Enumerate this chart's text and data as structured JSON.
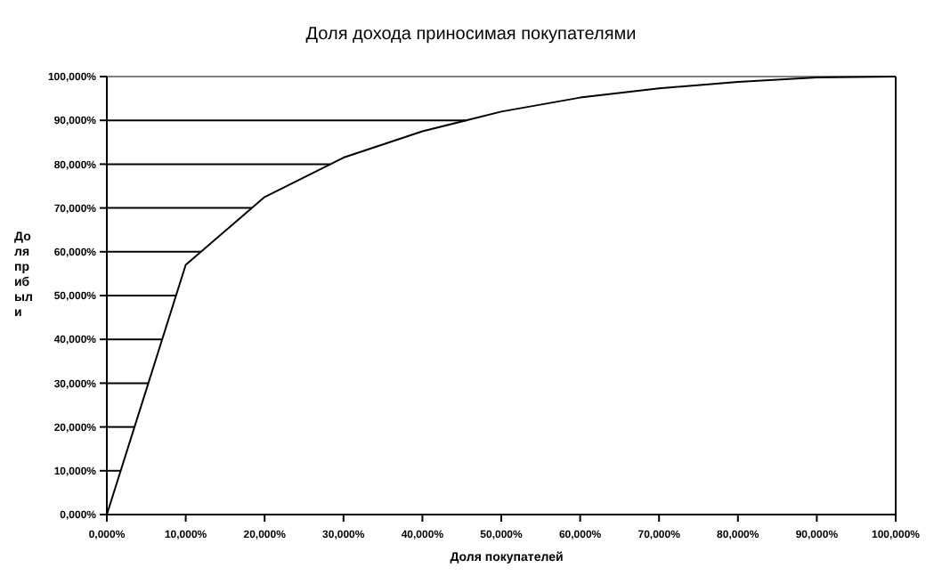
{
  "chart_data": {
    "type": "line",
    "title": "Доля дохода приносимая покупателями",
    "xlabel": "Доля покупателей",
    "ylabel": "Доля прибыли",
    "x": [
      0,
      10,
      20,
      30,
      40,
      50,
      60,
      70,
      80,
      90,
      100
    ],
    "series": [
      {
        "color": "#000000",
        "values": [
          0,
          57,
          72.5,
          81.5,
          87.5,
          92,
          95.2,
          97.3,
          98.8,
          99.8,
          100
        ]
      },
      {
        "type": "line",
        "color": "#000000",
        "x": [
          0,
          1.75
        ],
        "values": [
          10,
          10
        ]
      },
      {
        "type": "line",
        "color": "#000000",
        "x": [
          0,
          3.5
        ],
        "values": [
          20,
          20
        ]
      },
      {
        "type": "line",
        "color": "#000000",
        "x": [
          0,
          5.3
        ],
        "values": [
          30,
          30
        ]
      },
      {
        "type": "line",
        "color": "#000000",
        "x": [
          0,
          7
        ],
        "values": [
          40,
          40
        ]
      },
      {
        "type": "line",
        "color": "#000000",
        "x": [
          0,
          8.8
        ],
        "values": [
          50,
          50
        ]
      },
      {
        "type": "line",
        "color": "#000000",
        "x": [
          0,
          11.9
        ],
        "values": [
          60,
          60
        ]
      },
      {
        "type": "line",
        "color": "#000000",
        "x": [
          0,
          18.4
        ],
        "values": [
          70,
          70
        ]
      },
      {
        "type": "line",
        "color": "#000000",
        "x": [
          0,
          28.3
        ],
        "values": [
          80,
          80
        ]
      },
      {
        "type": "line",
        "color": "#000000",
        "x": [
          0,
          45.6
        ],
        "values": [
          90,
          90
        ]
      }
    ],
    "xlim": [
      0,
      100
    ],
    "ylim": [
      0,
      100
    ],
    "xticks": [
      {
        "value": 0,
        "label": "0,000%"
      },
      {
        "value": 10,
        "label": "10,000%"
      },
      {
        "value": 20,
        "label": "20,000%"
      },
      {
        "value": 30,
        "label": "30,000%"
      },
      {
        "value": 40,
        "label": "40,000%"
      },
      {
        "value": 50,
        "label": "50,000%"
      },
      {
        "value": 60,
        "label": "60,000%"
      },
      {
        "value": 70,
        "label": "70,000%"
      },
      {
        "value": 80,
        "label": "80,000%"
      },
      {
        "value": 90,
        "label": "90,000%"
      },
      {
        "value": 100,
        "label": "100,000%"
      }
    ],
    "yticks": [
      {
        "value": 0,
        "label": "0,000%"
      },
      {
        "value": 10,
        "label": "10,000%"
      },
      {
        "value": 20,
        "label": "20,000%"
      },
      {
        "value": 30,
        "label": "30,000%"
      },
      {
        "value": 40,
        "label": "40,000%"
      },
      {
        "value": 50,
        "label": "50,000%"
      },
      {
        "value": 60,
        "label": "60,000%"
      },
      {
        "value": 70,
        "label": "70,000%"
      },
      {
        "value": 80,
        "label": "80,000%"
      },
      {
        "value": 90,
        "label": "90,000%"
      },
      {
        "value": 100,
        "label": "100,000%"
      }
    ],
    "marker": "none",
    "line_style": "solid"
  }
}
